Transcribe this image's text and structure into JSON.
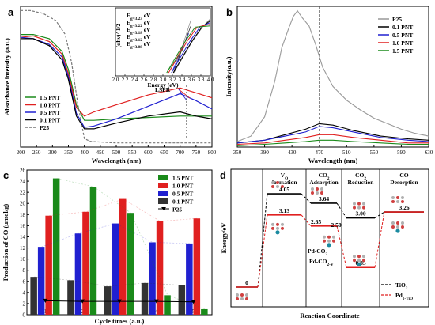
{
  "chart_data": [
    {
      "panel": "a",
      "type": "line",
      "xlabel": "Wavelength (nm)",
      "ylabel": "Absorbance intensity (a.u.)",
      "xlim": [
        200,
        800
      ],
      "x_ticks": [
        200,
        250,
        300,
        350,
        400,
        450,
        500,
        550,
        600,
        650,
        700,
        750,
        800
      ],
      "annotation": "LSPR",
      "series": [
        {
          "name": "1.5 PNT",
          "color": "#1a8a1a",
          "points": [
            [
              200,
              0.8
            ],
            [
              240,
              0.8
            ],
            [
              290,
              0.77
            ],
            [
              330,
              0.68
            ],
            [
              350,
              0.55
            ],
            [
              375,
              0.3
            ],
            [
              400,
              0.19
            ],
            [
              430,
              0.19
            ],
            [
              500,
              0.2
            ],
            [
              600,
              0.21
            ],
            [
              700,
              0.22
            ],
            [
              800,
              0.22
            ]
          ]
        },
        {
          "name": "1.0 PNT",
          "color": "#e02020",
          "points": [
            [
              200,
              0.78
            ],
            [
              240,
              0.79
            ],
            [
              290,
              0.75
            ],
            [
              330,
              0.66
            ],
            [
              350,
              0.52
            ],
            [
              375,
              0.28
            ],
            [
              400,
              0.22
            ],
            [
              430,
              0.25
            ],
            [
              500,
              0.3
            ],
            [
              600,
              0.37
            ],
            [
              700,
              0.42
            ],
            [
              800,
              0.35
            ]
          ]
        },
        {
          "name": "0.5 PNT",
          "color": "#2020d0",
          "points": [
            [
              200,
              0.78
            ],
            [
              240,
              0.77
            ],
            [
              290,
              0.73
            ],
            [
              330,
              0.64
            ],
            [
              350,
              0.5
            ],
            [
              375,
              0.24
            ],
            [
              400,
              0.14
            ],
            [
              430,
              0.15
            ],
            [
              500,
              0.2
            ],
            [
              600,
              0.29
            ],
            [
              700,
              0.38
            ],
            [
              750,
              0.33
            ],
            [
              800,
              0.27
            ]
          ]
        },
        {
          "name": "0.1 PNT",
          "color": "#000000",
          "points": [
            [
              200,
              0.77
            ],
            [
              240,
              0.77
            ],
            [
              290,
              0.72
            ],
            [
              330,
              0.62
            ],
            [
              350,
              0.48
            ],
            [
              375,
              0.22
            ],
            [
              400,
              0.13
            ],
            [
              430,
              0.13
            ],
            [
              500,
              0.17
            ],
            [
              600,
              0.22
            ],
            [
              700,
              0.25
            ],
            [
              750,
              0.22
            ],
            [
              800,
              0.2
            ]
          ]
        },
        {
          "name": "P25",
          "color": "#777777",
          "dashed": true,
          "points": [
            [
              200,
              0.97
            ],
            [
              230,
              0.97
            ],
            [
              270,
              0.95
            ],
            [
              310,
              0.9
            ],
            [
              340,
              0.8
            ],
            [
              360,
              0.6
            ],
            [
              380,
              0.3
            ],
            [
              400,
              0.06
            ],
            [
              420,
              0.04
            ],
            [
              500,
              0.03
            ],
            [
              800,
              0.03
            ]
          ]
        }
      ],
      "inset": {
        "xlabel": "Energy (eV)",
        "ylabel": "(αhν)^1/2",
        "xlim": [
          2.0,
          4.0
        ],
        "x_ticks": [
          "2.0",
          "2.2",
          "2.4",
          "2.6",
          "2.8",
          "3.0",
          "3.2",
          "3.4",
          "3.6",
          "3.8",
          "4.0"
        ],
        "bandgaps": [
          {
            "label": "E_g=3.23 eV",
            "color": "#777777",
            "value": 3.23
          },
          {
            "label": "E_g=3.22 eV",
            "color": "#000000",
            "value": 3.22
          },
          {
            "label": "E_g=3.18 eV",
            "color": "#2020d0",
            "value": 3.18
          },
          {
            "label": "E_g=3.12 eV",
            "color": "#e02020",
            "value": 3.12
          },
          {
            "label": "E_g=3.08 eV",
            "color": "#1a8a1a",
            "value": 3.08
          }
        ]
      }
    },
    {
      "panel": "b",
      "type": "line",
      "xlabel": "Wavelength (nm)",
      "ylabel": "Intensity(a.u.)",
      "xlim": [
        350,
        630
      ],
      "x_ticks": [
        350,
        390,
        430,
        470,
        510,
        550,
        590,
        630
      ],
      "dashed_marker_x": 470,
      "series": [
        {
          "name": "P25",
          "color": "#999999",
          "points": [
            [
              350,
              0.04
            ],
            [
              370,
              0.08
            ],
            [
              390,
              0.22
            ],
            [
              405,
              0.48
            ],
            [
              415,
              0.72
            ],
            [
              425,
              0.86
            ],
            [
              432,
              0.95
            ],
            [
              438,
              0.99
            ],
            [
              445,
              0.94
            ],
            [
              455,
              0.88
            ],
            [
              465,
              0.74
            ],
            [
              475,
              0.58
            ],
            [
              490,
              0.44
            ],
            [
              510,
              0.34
            ],
            [
              530,
              0.27
            ],
            [
              550,
              0.21
            ],
            [
              570,
              0.17
            ],
            [
              590,
              0.13
            ],
            [
              610,
              0.1
            ],
            [
              630,
              0.08
            ]
          ]
        },
        {
          "name": "0.1 PNT",
          "color": "#000000",
          "points": [
            [
              350,
              0.03
            ],
            [
              390,
              0.05
            ],
            [
              420,
              0.09
            ],
            [
              450,
              0.13
            ],
            [
              470,
              0.17
            ],
            [
              490,
              0.16
            ],
            [
              520,
              0.12
            ],
            [
              560,
              0.08
            ],
            [
              600,
              0.06
            ],
            [
              630,
              0.05
            ]
          ]
        },
        {
          "name": "0.5 PNT",
          "color": "#2020d0",
          "points": [
            [
              350,
              0.03
            ],
            [
              390,
              0.05
            ],
            [
              420,
              0.08
            ],
            [
              450,
              0.11
            ],
            [
              470,
              0.15
            ],
            [
              490,
              0.14
            ],
            [
              520,
              0.11
            ],
            [
              560,
              0.07
            ],
            [
              600,
              0.05
            ],
            [
              630,
              0.04
            ]
          ]
        },
        {
          "name": "1.0 PNT",
          "color": "#e02020",
          "points": [
            [
              350,
              0.02
            ],
            [
              390,
              0.03
            ],
            [
              420,
              0.05
            ],
            [
              450,
              0.07
            ],
            [
              470,
              0.09
            ],
            [
              490,
              0.09
            ],
            [
              520,
              0.07
            ],
            [
              560,
              0.05
            ],
            [
              600,
              0.03
            ],
            [
              630,
              0.03
            ]
          ]
        },
        {
          "name": "1.5 PNT",
          "color": "#1a8a1a",
          "points": [
            [
              350,
              0.01
            ],
            [
              390,
              0.02
            ],
            [
              420,
              0.03
            ],
            [
              450,
              0.04
            ],
            [
              470,
              0.05
            ],
            [
              490,
              0.05
            ],
            [
              520,
              0.04
            ],
            [
              560,
              0.03
            ],
            [
              600,
              0.02
            ],
            [
              630,
              0.02
            ]
          ]
        }
      ]
    },
    {
      "panel": "c",
      "type": "bar",
      "xlabel": "Cycle times (a.u.)",
      "ylabel": "Production of CO (μmol/g)",
      "categories": [
        "1",
        "2",
        "3",
        "4",
        "5"
      ],
      "ylim": [
        0,
        26
      ],
      "y_ticks": [
        0,
        2,
        4,
        6,
        8,
        10,
        12,
        14,
        16,
        18,
        20,
        22,
        24,
        26
      ],
      "series": [
        {
          "name": "1.5 PNT",
          "color": "#1a8a1a",
          "values": [
            24.5,
            23.0,
            18.3,
            3.5,
            1.0
          ]
        },
        {
          "name": "1.0 PNT",
          "color": "#e02020",
          "values": [
            17.8,
            18.5,
            20.8,
            16.8,
            17.3
          ]
        },
        {
          "name": "0.5 PNT",
          "color": "#2020d0",
          "values": [
            12.2,
            14.6,
            16.4,
            13.0,
            12.8
          ]
        },
        {
          "name": "0.1 PNT",
          "color": "#333333",
          "values": [
            6.8,
            6.2,
            5.1,
            5.7,
            5.3
          ]
        },
        {
          "name": "P25",
          "color": "#000000",
          "type": "line",
          "values": [
            2.5,
            2.4,
            2.4,
            2.4,
            2.3
          ]
        }
      ]
    },
    {
      "panel": "d",
      "type": "diagram",
      "xlabel": "Reaction Coordinate",
      "ylabel": "Energy/eV",
      "stages": [
        "V_O formation",
        "CO_2 Adsorption",
        "CO_2 Reduction",
        "CO Desorption"
      ],
      "energies_TiO2": [
        0,
        4.05,
        3.64,
        3.0,
        3.26
      ],
      "energies_Pd_TiO2": [
        0,
        3.13,
        2.65,
        0.85,
        3.26
      ],
      "extra_point_label": "2.50",
      "annotations": [
        "Pd-CO_2",
        "Pd-CO_2-V_O"
      ],
      "legend": [
        {
          "name": "TiO_2",
          "color": "#000000",
          "dashed": true
        },
        {
          "name": "Pd_1-TiO_2",
          "color": "#e02020",
          "dashed": true
        }
      ]
    }
  ]
}
